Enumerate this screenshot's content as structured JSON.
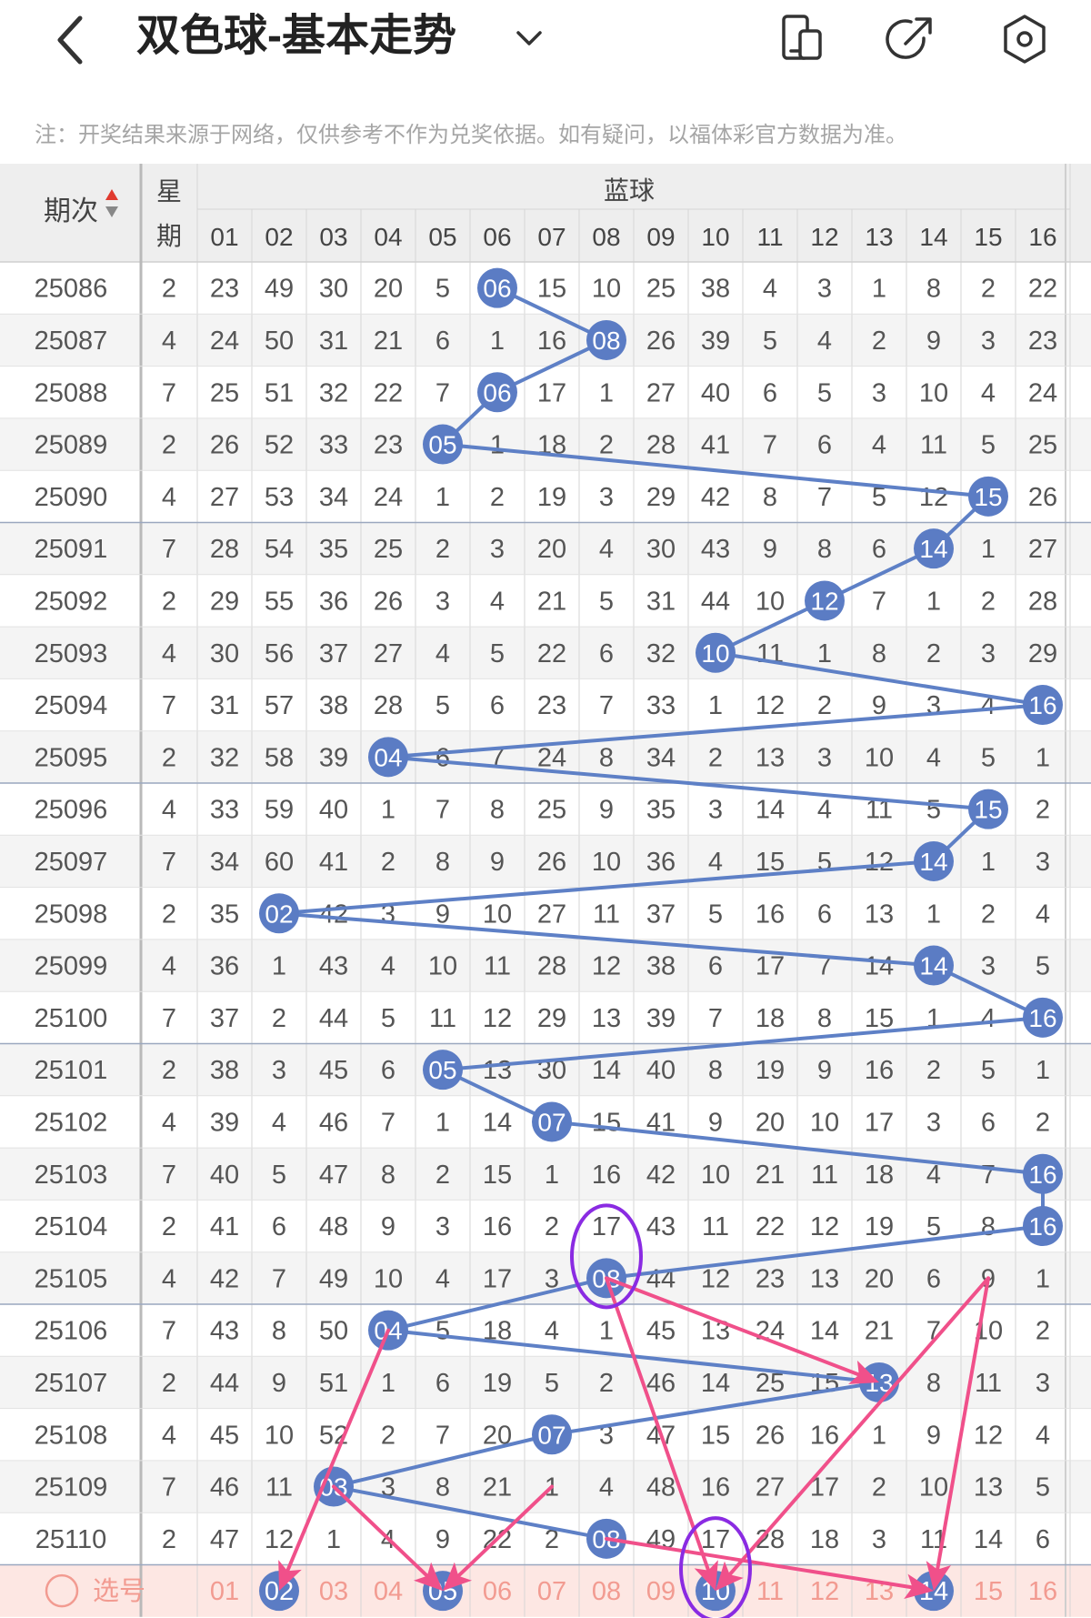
{
  "header": {
    "title": "双色球-基本走势",
    "back_icon": "chevron-left-icon",
    "dropdown_icon": "chevron-down-icon",
    "actions": [
      {
        "name": "phone-screen-icon"
      },
      {
        "name": "share-icon"
      },
      {
        "name": "settings-icon"
      }
    ]
  },
  "note": "注：开奖结果来源于网络，仅供参考不作为兑奖依据。如有疑问，以福体彩官方数据为准。",
  "table": {
    "col_issue": "期次",
    "col_week_1": "星",
    "col_week_2": "期",
    "group_label": "蓝球",
    "ball_numbers": [
      "01",
      "02",
      "03",
      "04",
      "05",
      "06",
      "07",
      "08",
      "09",
      "10",
      "11",
      "12",
      "13",
      "14",
      "15",
      "16"
    ],
    "rows": [
      {
        "issue": "25086",
        "week": "2",
        "cells": [
          "23",
          "49",
          "30",
          "20",
          "5",
          "06",
          "15",
          "10",
          "25",
          "38",
          "4",
          "3",
          "1",
          "8",
          "2",
          "22"
        ],
        "hit": 6
      },
      {
        "issue": "25087",
        "week": "4",
        "cells": [
          "24",
          "50",
          "31",
          "21",
          "6",
          "1",
          "16",
          "08",
          "26",
          "39",
          "5",
          "4",
          "2",
          "9",
          "3",
          "23"
        ],
        "hit": 8
      },
      {
        "issue": "25088",
        "week": "7",
        "cells": [
          "25",
          "51",
          "32",
          "22",
          "7",
          "06",
          "17",
          "1",
          "27",
          "40",
          "6",
          "5",
          "3",
          "10",
          "4",
          "24"
        ],
        "hit": 6
      },
      {
        "issue": "25089",
        "week": "2",
        "cells": [
          "26",
          "52",
          "33",
          "23",
          "05",
          "1",
          "18",
          "2",
          "28",
          "41",
          "7",
          "6",
          "4",
          "11",
          "5",
          "25"
        ],
        "hit": 5
      },
      {
        "issue": "25090",
        "week": "4",
        "cells": [
          "27",
          "53",
          "34",
          "24",
          "1",
          "2",
          "19",
          "3",
          "29",
          "42",
          "8",
          "7",
          "5",
          "12",
          "15",
          "26"
        ],
        "hit": 15
      },
      {
        "issue": "25091",
        "week": "7",
        "cells": [
          "28",
          "54",
          "35",
          "25",
          "2",
          "3",
          "20",
          "4",
          "30",
          "43",
          "9",
          "8",
          "6",
          "14",
          "1",
          "27"
        ],
        "hit": 14
      },
      {
        "issue": "25092",
        "week": "2",
        "cells": [
          "29",
          "55",
          "36",
          "26",
          "3",
          "4",
          "21",
          "5",
          "31",
          "44",
          "10",
          "12",
          "7",
          "1",
          "2",
          "28"
        ],
        "hit": 12
      },
      {
        "issue": "25093",
        "week": "4",
        "cells": [
          "30",
          "56",
          "37",
          "27",
          "4",
          "5",
          "22",
          "6",
          "32",
          "10",
          "11",
          "1",
          "8",
          "2",
          "3",
          "29"
        ],
        "hit": 10
      },
      {
        "issue": "25094",
        "week": "7",
        "cells": [
          "31",
          "57",
          "38",
          "28",
          "5",
          "6",
          "23",
          "7",
          "33",
          "1",
          "12",
          "2",
          "9",
          "3",
          "4",
          "16"
        ],
        "hit": 16
      },
      {
        "issue": "25095",
        "week": "2",
        "cells": [
          "32",
          "58",
          "39",
          "04",
          "6",
          "7",
          "24",
          "8",
          "34",
          "2",
          "13",
          "3",
          "10",
          "4",
          "5",
          "1"
        ],
        "hit": 4
      },
      {
        "issue": "25096",
        "week": "4",
        "cells": [
          "33",
          "59",
          "40",
          "1",
          "7",
          "8",
          "25",
          "9",
          "35",
          "3",
          "14",
          "4",
          "11",
          "5",
          "15",
          "2"
        ],
        "hit": 15
      },
      {
        "issue": "25097",
        "week": "7",
        "cells": [
          "34",
          "60",
          "41",
          "2",
          "8",
          "9",
          "26",
          "10",
          "36",
          "4",
          "15",
          "5",
          "12",
          "14",
          "1",
          "3"
        ],
        "hit": 14
      },
      {
        "issue": "25098",
        "week": "2",
        "cells": [
          "35",
          "02",
          "42",
          "3",
          "9",
          "10",
          "27",
          "11",
          "37",
          "5",
          "16",
          "6",
          "13",
          "1",
          "2",
          "4"
        ],
        "hit": 2
      },
      {
        "issue": "25099",
        "week": "4",
        "cells": [
          "36",
          "1",
          "43",
          "4",
          "10",
          "11",
          "28",
          "12",
          "38",
          "6",
          "17",
          "7",
          "14",
          "14",
          "3",
          "5"
        ],
        "hit": 14
      },
      {
        "issue": "25100",
        "week": "7",
        "cells": [
          "37",
          "2",
          "44",
          "5",
          "11",
          "12",
          "29",
          "13",
          "39",
          "7",
          "18",
          "8",
          "15",
          "1",
          "4",
          "16"
        ],
        "hit": 16
      },
      {
        "issue": "25101",
        "week": "2",
        "cells": [
          "38",
          "3",
          "45",
          "6",
          "05",
          "13",
          "30",
          "14",
          "40",
          "8",
          "19",
          "9",
          "16",
          "2",
          "5",
          "1"
        ],
        "hit": 5
      },
      {
        "issue": "25102",
        "week": "4",
        "cells": [
          "39",
          "4",
          "46",
          "7",
          "1",
          "14",
          "07",
          "15",
          "41",
          "9",
          "20",
          "10",
          "17",
          "3",
          "6",
          "2"
        ],
        "hit": 7
      },
      {
        "issue": "25103",
        "week": "7",
        "cells": [
          "40",
          "5",
          "47",
          "8",
          "2",
          "15",
          "1",
          "16",
          "42",
          "10",
          "21",
          "11",
          "18",
          "4",
          "7",
          "16"
        ],
        "hit": 16
      },
      {
        "issue": "25104",
        "week": "2",
        "cells": [
          "41",
          "6",
          "48",
          "9",
          "3",
          "16",
          "2",
          "17",
          "43",
          "11",
          "22",
          "12",
          "19",
          "5",
          "8",
          "16"
        ],
        "hit": 16
      },
      {
        "issue": "25105",
        "week": "4",
        "cells": [
          "42",
          "7",
          "49",
          "10",
          "4",
          "17",
          "3",
          "08",
          "44",
          "12",
          "23",
          "13",
          "20",
          "6",
          "9",
          "1"
        ],
        "hit": 8
      },
      {
        "issue": "25106",
        "week": "7",
        "cells": [
          "43",
          "8",
          "50",
          "04",
          "5",
          "18",
          "4",
          "1",
          "45",
          "13",
          "24",
          "14",
          "21",
          "7",
          "10",
          "2"
        ],
        "hit": 4
      },
      {
        "issue": "25107",
        "week": "2",
        "cells": [
          "44",
          "9",
          "51",
          "1",
          "6",
          "19",
          "5",
          "2",
          "46",
          "14",
          "25",
          "15",
          "13",
          "8",
          "11",
          "3"
        ],
        "hit": 13
      },
      {
        "issue": "25108",
        "week": "4",
        "cells": [
          "45",
          "10",
          "52",
          "2",
          "7",
          "20",
          "07",
          "3",
          "47",
          "15",
          "26",
          "16",
          "1",
          "9",
          "12",
          "4"
        ],
        "hit": 7
      },
      {
        "issue": "25109",
        "week": "7",
        "cells": [
          "46",
          "11",
          "03",
          "3",
          "8",
          "21",
          "1",
          "4",
          "48",
          "16",
          "27",
          "17",
          "2",
          "10",
          "13",
          "5"
        ],
        "hit": 3
      },
      {
        "issue": "25110",
        "week": "2",
        "cells": [
          "47",
          "12",
          "1",
          "4",
          "9",
          "22",
          "2",
          "08",
          "49",
          "17",
          "28",
          "18",
          "3",
          "11",
          "14",
          "6"
        ],
        "hit": 8
      }
    ],
    "select_label": "选号",
    "select_row": [
      "01",
      "02",
      "03",
      "04",
      "05",
      "06",
      "07",
      "08",
      "09",
      "10",
      "11",
      "12",
      "13",
      "14",
      "15",
      "16"
    ],
    "selected_numbers": [
      2,
      5,
      10,
      14
    ],
    "circled_cells": [
      [
        19,
        8
      ],
      [
        25,
        10
      ]
    ]
  },
  "annotations": {
    "arrows": [
      {
        "from": [
          20,
          4
        ],
        "to": [
          25,
          2
        ]
      },
      {
        "from": [
          23,
          7
        ],
        "to": [
          25,
          5
        ]
      },
      {
        "from": [
          23,
          3
        ],
        "to": [
          25,
          5
        ]
      },
      {
        "from": [
          19,
          8
        ],
        "to": [
          21,
          13
        ]
      },
      {
        "from": [
          19,
          8
        ],
        "to": [
          25,
          10
        ]
      },
      {
        "from": [
          24,
          8
        ],
        "to": [
          25,
          14
        ]
      },
      {
        "from": [
          19,
          15
        ],
        "to": [
          25,
          10
        ]
      },
      {
        "from": [
          19,
          15
        ],
        "to": [
          25,
          14
        ]
      }
    ]
  },
  "colors": {
    "blue_ball": "#5b7cc4",
    "line": "#5e80c6",
    "arrow": "#f0508a",
    "circle": "#8a2be2",
    "select_bg": "#fde7e3",
    "select_text": "#f29b91",
    "header_bg": "#eeeeee",
    "row_alt": "#f4f4f4"
  }
}
